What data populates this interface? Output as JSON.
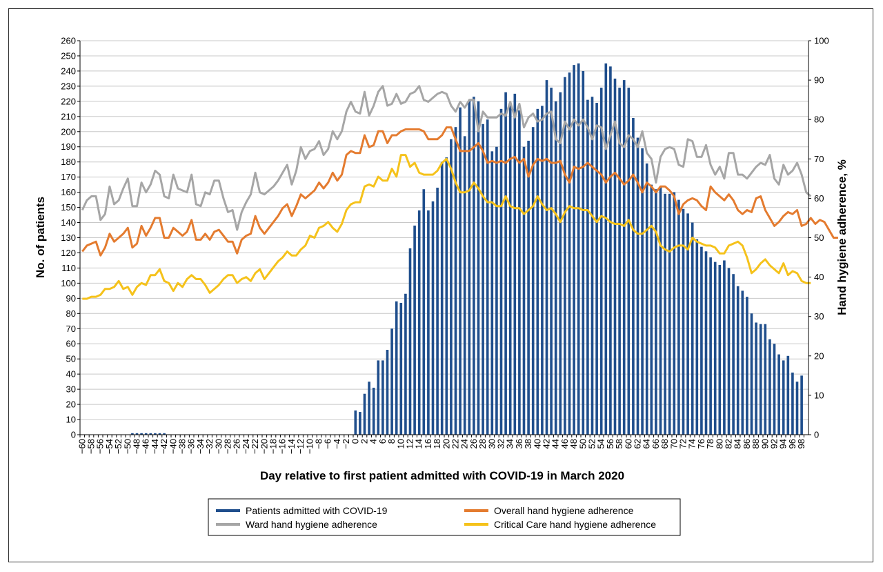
{
  "chart_data": {
    "type": "bar",
    "title": "",
    "xlabel": "Day relative to first patient admitted with COVID-19 in March 2020",
    "ylabel": "No. of patients",
    "y2label": "Hand hygiene adherence, %",
    "xlim": [
      -60,
      99
    ],
    "ylim": [
      0,
      260
    ],
    "y2lim": [
      0,
      100
    ],
    "yticks": [
      0,
      10,
      20,
      30,
      40,
      50,
      60,
      70,
      80,
      90,
      100,
      110,
      120,
      130,
      140,
      150,
      160,
      170,
      180,
      190,
      200,
      210,
      220,
      230,
      240,
      250,
      260
    ],
    "y2ticks": [
      0,
      10,
      20,
      30,
      40,
      50,
      60,
      70,
      80,
      90,
      100
    ],
    "xtick_labels": [
      "−60",
      "−58",
      "−56",
      "−54",
      "−52",
      "−50",
      "−48",
      "−46",
      "−44",
      "−42",
      "−40",
      "−38",
      "−36",
      "−34",
      "−32",
      "−30",
      "−28",
      "−26",
      "−24",
      "−22",
      "−20",
      "−18",
      "−16",
      "−14",
      "−12",
      "−10",
      "−8",
      "−6",
      "−4",
      "−2",
      "0",
      "2",
      "4",
      "6",
      "8",
      "10",
      "12",
      "14",
      "16",
      "18",
      "20",
      "22",
      "24",
      "26",
      "28",
      "30",
      "32",
      "34",
      "36",
      "38",
      "40",
      "42",
      "44",
      "46",
      "48",
      "50",
      "52",
      "54",
      "56",
      "58",
      "60",
      "62",
      "64",
      "66",
      "68",
      "70",
      "72",
      "74",
      "76",
      "78",
      "80",
      "82",
      "84",
      "86",
      "88",
      "90",
      "92",
      "94",
      "96",
      "98"
    ],
    "grid": true,
    "legend_position": "bottom",
    "colors": {
      "bars": "#1f4e8c",
      "overall": "#e47b2f",
      "ward": "#a6a6a6",
      "critical": "#f5c21b"
    },
    "legend": [
      {
        "key": "bars",
        "label": "Patients admitted with COVID-19",
        "color": "#1f4e8c"
      },
      {
        "key": "overall",
        "label": "Overall hand hygiene adherence",
        "color": "#e47b2f"
      },
      {
        "key": "ward",
        "label": "Ward hand hygiene adherence",
        "color": "#a6a6a6"
      },
      {
        "key": "critical",
        "label": "Critical Care hand hygiene adherence",
        "color": "#f5c21b"
      }
    ],
    "bars": {
      "name": "Patients admitted with COVID-19",
      "axis": "left",
      "x_start": -60,
      "values": [
        0,
        0,
        0,
        0,
        0,
        0,
        0,
        0,
        0,
        0,
        0,
        1,
        1,
        1,
        1,
        1,
        1,
        1,
        1,
        0,
        0,
        0,
        0,
        0,
        0,
        0,
        0,
        0,
        0,
        0,
        0,
        0,
        0,
        0,
        0,
        0,
        0,
        0,
        0,
        0,
        0,
        0,
        0,
        0,
        0,
        0,
        0,
        0,
        0,
        0,
        0,
        0,
        0,
        0,
        0,
        0,
        0,
        0,
        0,
        0,
        16,
        15,
        27,
        35,
        31,
        49,
        49,
        56,
        70,
        88,
        87,
        93,
        123,
        138,
        148,
        162,
        148,
        154,
        163,
        180,
        183,
        195,
        203,
        216,
        197,
        221,
        223,
        220,
        205,
        208,
        187,
        190,
        215,
        226,
        219,
        225,
        214,
        190,
        194,
        203,
        215,
        217,
        234,
        229,
        220,
        226,
        236,
        239,
        244,
        245,
        240,
        221,
        223,
        219,
        229,
        245,
        243,
        235,
        229,
        234,
        229,
        209,
        196,
        189,
        179,
        165,
        162,
        164,
        159,
        159,
        160,
        155,
        149,
        146,
        140,
        129,
        124,
        121,
        117,
        114,
        112,
        115,
        110,
        106,
        98,
        95,
        91,
        80,
        74,
        73,
        73,
        63,
        60,
        53,
        49,
        52,
        41,
        35,
        39
      ]
    },
    "series": [
      {
        "name": "Ward hand hygiene adherence",
        "key": "ward",
        "axis": "right",
        "x_start": -60,
        "values": [
          57,
          59.5,
          60.5,
          60.5,
          54.5,
          56,
          63,
          58.5,
          59.5,
          62.5,
          65,
          58,
          58,
          64,
          61.5,
          63.5,
          67,
          66,
          60.5,
          60,
          66,
          62.5,
          62,
          61.5,
          66,
          58.5,
          58,
          61.5,
          61,
          64.5,
          64.5,
          60,
          56.5,
          57,
          52,
          56.5,
          59,
          61,
          66.5,
          61.5,
          61,
          62,
          63,
          64.5,
          66.5,
          68.5,
          63.5,
          67,
          73,
          70,
          72,
          72.5,
          74.5,
          71,
          72.5,
          77,
          75,
          77,
          82,
          84.5,
          82,
          81.5,
          87,
          81,
          83.5,
          87,
          88.5,
          83.5,
          84,
          86.5,
          84,
          84.5,
          86.5,
          87,
          88.5,
          85,
          84.5,
          85.5,
          86.5,
          87,
          86.5,
          83.5,
          82,
          84.5,
          83,
          85,
          85,
          77,
          82,
          80.5,
          80.5,
          80.5,
          81.5,
          81,
          84.5,
          80.5,
          84,
          78,
          80.5,
          81.5,
          79.5,
          80,
          81.5,
          82,
          75,
          74,
          79.5,
          77.5,
          80,
          78.5,
          80,
          78,
          75,
          78.5,
          78,
          72.5,
          76,
          79.5,
          74,
          73,
          76,
          75,
          73,
          77,
          71.5,
          70,
          64,
          70.5,
          72.5,
          73,
          72.5,
          68.5,
          68,
          75,
          74.5,
          70.5,
          70.5,
          73.5,
          68.5,
          66,
          68,
          65,
          71.5,
          71.5,
          66,
          66,
          65,
          66.5,
          68,
          69,
          68.5,
          71,
          65,
          63.5,
          68.5,
          66,
          67,
          69,
          66,
          61.5,
          60.5
        ]
      },
      {
        "name": "Overall hand hygiene adherence",
        "key": "overall",
        "axis": "right",
        "x_start": -60,
        "values": [
          46.5,
          48,
          48.5,
          49,
          45.5,
          47.5,
          51,
          49,
          50,
          51,
          52.5,
          47.5,
          48.5,
          53,
          50.5,
          52.5,
          55,
          55,
          50,
          50,
          52.5,
          51.5,
          50.5,
          51.5,
          54.5,
          49.5,
          49.5,
          51,
          49.5,
          51.5,
          52,
          50.5,
          49,
          49,
          46,
          49.5,
          50.5,
          51,
          55.5,
          52.5,
          51,
          52.5,
          54,
          55.5,
          57.5,
          58.5,
          55.5,
          58,
          61,
          60,
          61,
          62,
          64,
          62.5,
          64,
          66.5,
          64.5,
          66,
          71,
          72,
          71.5,
          71.5,
          76,
          73,
          73.5,
          77,
          77,
          74,
          76,
          76,
          77,
          77.5,
          77.5,
          77.5,
          77.5,
          77,
          75,
          75,
          75,
          76,
          78,
          78,
          75,
          72,
          72,
          72,
          73,
          74,
          72,
          69,
          69.5,
          69,
          69.5,
          69,
          70,
          70.5,
          69,
          70,
          65.5,
          68.5,
          70,
          69.5,
          70,
          69,
          69,
          69.5,
          66,
          64,
          68,
          67.5,
          68,
          69,
          68,
          67,
          66,
          64,
          65.5,
          66.5,
          65,
          63.5,
          64.5,
          66,
          64,
          61.5,
          64,
          63,
          61.5,
          63,
          63,
          62,
          60.5,
          56,
          58.5,
          59.5,
          60,
          59.5,
          58,
          57,
          63,
          61.5,
          60.5,
          59.5,
          61,
          59.5,
          57,
          56,
          57,
          56.5,
          60,
          60.5,
          57,
          55,
          53,
          54,
          55.5,
          56.5,
          56,
          57,
          53,
          53.5,
          55,
          53.5,
          54.5,
          54,
          52,
          50,
          50
        ]
      },
      {
        "name": "Critical Care hand hygiene adherence",
        "key": "critical",
        "axis": "right",
        "x_start": -60,
        "values": [
          34.5,
          34.5,
          35,
          35,
          35.5,
          37,
          37,
          37.5,
          39,
          37,
          37.5,
          35.5,
          37.5,
          38.5,
          38,
          40.5,
          40.5,
          42,
          39,
          38.5,
          36.5,
          38.5,
          37.5,
          39.5,
          40.5,
          39.5,
          39.5,
          38,
          36,
          37,
          38,
          39.5,
          40.5,
          40.5,
          38.5,
          39.5,
          40,
          39,
          41,
          42,
          39.5,
          41,
          42.5,
          44,
          45,
          46.5,
          45.5,
          45.5,
          47,
          48,
          50.5,
          50,
          52.5,
          53,
          54,
          52.5,
          51.5,
          53.5,
          57,
          58.5,
          59,
          59,
          63,
          63.5,
          63,
          65.5,
          64.5,
          64.5,
          67.5,
          65.5,
          71,
          71,
          68,
          69,
          66.5,
          66,
          66,
          66,
          67,
          69,
          70,
          67.5,
          64,
          61.5,
          61.5,
          62,
          64,
          62.5,
          60.5,
          59,
          59,
          58,
          58,
          60.5,
          58,
          57.5,
          57.5,
          56,
          57,
          58,
          60.5,
          58.5,
          57,
          57.5,
          56,
          54,
          56.5,
          58,
          57.5,
          57.5,
          57,
          57,
          55.5,
          54,
          55.5,
          55,
          54,
          53.5,
          53.5,
          53,
          54.5,
          52,
          51,
          51,
          52,
          53,
          51.5,
          48,
          47,
          46.5,
          47.5,
          48,
          48,
          47,
          50,
          49,
          48.5,
          48,
          48,
          47.5,
          46,
          46,
          48,
          48.5,
          49,
          48,
          45,
          41,
          42,
          43.5,
          44.5,
          43,
          42,
          41,
          43.5,
          40.5,
          41.5,
          41,
          39,
          38.5,
          38.5
        ]
      }
    ]
  }
}
